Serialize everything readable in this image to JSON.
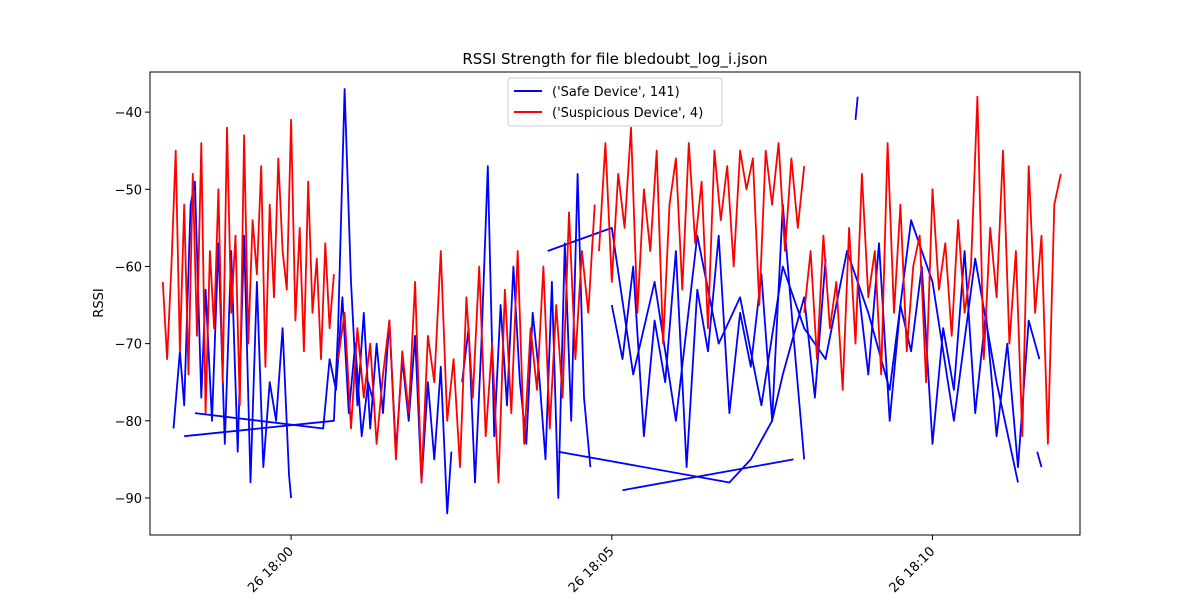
{
  "chart_data": {
    "type": "line",
    "title": "RSSI Strength for file bledoubt_log_i.json",
    "xlabel": "",
    "ylabel": "RSSI",
    "x_axis": "time",
    "xlim": [
      "18:57:48",
      "19:12:18"
    ],
    "ylim": [
      -94.8,
      -34.8
    ],
    "x_ticks": [
      {
        "value": "19:00:00",
        "label": "26 18:00"
      },
      {
        "value": "19:05:00",
        "label": "26 18:05"
      },
      {
        "value": "19:10:00",
        "label": "26 18:10"
      }
    ],
    "y_ticks": [
      -90,
      -80,
      -70,
      -60,
      -50,
      -40
    ],
    "grid": false,
    "legend_position": "top-center",
    "series": [
      {
        "name": "('Safe Device', 141)",
        "color": "#0000ff",
        "segments": [
          {
            "x": [
              "18:58:10",
              "18:58:16",
              "18:58:20",
              "18:58:26",
              "18:58:30",
              "18:58:36",
              "18:58:40",
              "18:58:46",
              "18:58:52",
              "18:58:58",
              "18:59:04",
              "18:59:10",
              "18:59:16",
              "18:59:22",
              "18:59:28",
              "18:59:34",
              "18:59:40",
              "18:59:46",
              "18:59:52",
              "18:59:58",
              "19:00:00"
            ],
            "y": [
              -81,
              -71,
              -78,
              -52,
              -49,
              -77,
              -63,
              -80,
              -57,
              -83,
              -58,
              -84,
              -56,
              -88,
              -62,
              -86,
              -75,
              -80,
              -68,
              -87,
              -90
            ]
          },
          {
            "x": [
              "18:58:20",
              "19:00:40",
              "19:00:44",
              "19:00:50",
              "19:00:56",
              "19:01:02",
              "19:01:08",
              "19:01:14",
              "19:01:20",
              "19:01:26",
              "19:01:32",
              "19:01:38",
              "19:01:44",
              "19:01:50",
              "19:01:56",
              "19:02:02",
              "19:02:08",
              "19:02:14",
              "19:02:20",
              "19:02:26",
              "19:02:30"
            ],
            "y": [
              -82,
              -80,
              -68,
              -37,
              -62,
              -78,
              -66,
              -81,
              -70,
              -79,
              -67,
              -84,
              -72,
              -80,
              -69,
              -88,
              -75,
              -85,
              -73,
              -92,
              -84
            ]
          },
          {
            "x": [
              "18:58:30",
              "19:00:30",
              "19:00:36",
              "19:00:42",
              "19:00:48",
              "19:00:54",
              "19:01:00",
              "19:01:06",
              "19:01:12",
              "19:01:18"
            ],
            "y": [
              -79,
              -81,
              -72,
              -76,
              -64,
              -79,
              -70,
              -82,
              -75,
              -78
            ]
          },
          {
            "x": [
              "19:02:40",
              "19:02:46",
              "19:02:52",
              "19:02:58",
              "19:03:04",
              "19:03:10",
              "19:03:16",
              "19:03:22",
              "19:03:28",
              "19:03:34",
              "19:03:40",
              "19:03:46",
              "19:03:52",
              "19:03:58",
              "19:04:04",
              "19:04:10",
              "19:04:16",
              "19:04:22",
              "19:04:28",
              "19:04:34",
              "19:04:40"
            ],
            "y": [
              -75,
              -68,
              -88,
              -70,
              -47,
              -82,
              -65,
              -78,
              -60,
              -75,
              -83,
              -66,
              -74,
              -85,
              -62,
              -90,
              -57,
              -80,
              -48,
              -77,
              -86
            ]
          },
          {
            "x": [
              "19:04:10",
              "19:06:50",
              "19:07:10",
              "19:07:30",
              "19:07:40",
              "19:07:50",
              "19:08:00"
            ],
            "y": [
              -84,
              -88,
              -85,
              -80,
              -74,
              -69,
              -85
            ]
          },
          {
            "x": [
              "19:04:00",
              "19:05:00",
              "19:05:20",
              "19:05:40",
              "19:06:00",
              "19:06:20",
              "19:06:40",
              "19:07:00",
              "19:07:20",
              "19:07:40",
              "19:08:00",
              "19:08:20",
              "19:08:40",
              "19:09:00",
              "19:09:20",
              "19:09:40",
              "19:10:00",
              "19:10:20",
              "19:10:40",
              "19:11:00",
              "19:11:20"
            ],
            "y": [
              -58,
              -55,
              -74,
              -62,
              -80,
              -56,
              -70,
              -64,
              -78,
              -60,
              -68,
              -72,
              -58,
              -66,
              -76,
              -54,
              -62,
              -80,
              -59,
              -75,
              -88
            ]
          },
          {
            "x": [
              "19:05:00",
              "19:05:10",
              "19:05:20",
              "19:05:30",
              "19:05:40",
              "19:05:50",
              "19:06:00",
              "19:06:10",
              "19:06:20",
              "19:06:30",
              "19:06:40",
              "19:06:50",
              "19:07:00",
              "19:07:10",
              "19:07:20",
              "19:07:30",
              "19:07:40",
              "19:07:50",
              "19:08:00",
              "19:08:10",
              "19:08:20"
            ],
            "y": [
              -65,
              -72,
              -60,
              -82,
              -67,
              -75,
              -58,
              -86,
              -63,
              -71,
              -56,
              -79,
              -66,
              -73,
              -61,
              -80,
              -52,
              -69,
              -64,
              -77,
              -59
            ]
          },
          {
            "x": [
              "19:05:10",
              "19:07:50"
            ],
            "y": [
              -89,
              -85
            ]
          },
          {
            "x": [
              "19:08:50",
              "19:09:00",
              "19:09:10",
              "19:09:20",
              "19:09:30",
              "19:09:40",
              "19:09:50",
              "19:10:00",
              "19:10:10",
              "19:10:20",
              "19:10:30",
              "19:10:40",
              "19:10:50",
              "19:11:00",
              "19:11:10",
              "19:11:20",
              "19:11:30",
              "19:11:40"
            ],
            "y": [
              -62,
              -74,
              -57,
              -80,
              -65,
              -71,
              -60,
              -83,
              -68,
              -76,
              -58,
              -79,
              -66,
              -82,
              -70,
              -86,
              -67,
              -72
            ]
          },
          {
            "x": [
              "19:08:48",
              "19:08:50"
            ],
            "y": [
              -41,
              -38
            ]
          },
          {
            "x": [
              "19:11:38",
              "19:11:42"
            ],
            "y": [
              -84,
              -86
            ]
          }
        ]
      },
      {
        "name": "('Suspicious Device', 4)",
        "color": "#ff0000",
        "segments": [
          {
            "x": [
              "18:58:00",
              "18:58:04",
              "18:58:08",
              "18:58:12",
              "18:58:16",
              "18:58:20",
              "18:58:24",
              "18:58:28",
              "18:58:32",
              "18:58:36",
              "18:58:40",
              "18:58:44",
              "18:58:48",
              "18:58:52",
              "18:58:56",
              "18:59:00",
              "18:59:04",
              "18:59:08",
              "18:59:12",
              "18:59:16",
              "18:59:20",
              "18:59:24",
              "18:59:28",
              "18:59:32",
              "18:59:36",
              "18:59:40",
              "18:59:44",
              "18:59:48",
              "18:59:52",
              "18:59:56",
              "19:00:00",
              "19:00:04",
              "19:00:08",
              "19:00:12",
              "19:00:16",
              "19:00:20",
              "19:00:24",
              "19:00:28",
              "19:00:32",
              "19:00:36",
              "19:00:40"
            ],
            "y": [
              -62,
              -72,
              -60,
              -45,
              -71,
              -52,
              -74,
              -48,
              -69,
              -44,
              -79,
              -58,
              -68,
              -50,
              -75,
              -42,
              -66,
              -56,
              -78,
              -43,
              -70,
              -54,
              -61,
              -47,
              -73,
              -52,
              -64,
              -46,
              -58,
              -63,
              -41,
              -67,
              -55,
              -71,
              -49,
              -66,
              -59,
              -72,
              -57,
              -68,
              -61
            ]
          },
          {
            "x": [
              "19:00:44",
              "19:00:50",
              "19:00:56",
              "19:01:02",
              "19:01:08",
              "19:01:14",
              "19:01:20",
              "19:01:26",
              "19:01:32",
              "19:01:38",
              "19:01:44",
              "19:01:50",
              "19:01:56",
              "19:02:02",
              "19:02:08",
              "19:02:14",
              "19:02:20",
              "19:02:26",
              "19:02:32",
              "19:02:38",
              "19:02:44",
              "19:02:50",
              "19:02:56",
              "19:03:02",
              "19:03:08",
              "19:03:14",
              "19:03:20",
              "19:03:26",
              "19:03:32",
              "19:03:38",
              "19:03:44",
              "19:03:50",
              "19:03:56",
              "19:04:02",
              "19:04:08",
              "19:04:14",
              "19:04:20",
              "19:04:26",
              "19:04:32",
              "19:04:38",
              "19:04:44"
            ],
            "y": [
              -72,
              -66,
              -81,
              -68,
              -77,
              -70,
              -83,
              -74,
              -67,
              -85,
              -71,
              -79,
              -62,
              -88,
              -69,
              -75,
              -58,
              -80,
              -72,
              -86,
              -64,
              -77,
              -60,
              -82,
              -70,
              -88,
              -63,
              -79,
              -58,
              -83,
              -68,
              -76,
              -60,
              -81,
              -65,
              -77,
              -53,
              -72,
              -58,
              -66,
              -52
            ]
          },
          {
            "x": [
              "19:04:48",
              "19:04:54",
              "19:05:00",
              "19:05:06",
              "19:05:12",
              "19:05:18",
              "19:05:24",
              "19:05:30",
              "19:05:36",
              "19:05:42",
              "19:05:48",
              "19:05:54",
              "19:06:00",
              "19:06:06",
              "19:06:12",
              "19:06:18",
              "19:06:24",
              "19:06:30",
              "19:06:36",
              "19:06:42",
              "19:06:48",
              "19:06:54",
              "19:07:00",
              "19:07:06",
              "19:07:12",
              "19:07:18",
              "19:07:24",
              "19:07:30",
              "19:07:36",
              "19:07:42",
              "19:07:48",
              "19:07:54",
              "19:08:00"
            ],
            "y": [
              -58,
              -44,
              -62,
              -48,
              -55,
              -42,
              -66,
              -50,
              -58,
              -45,
              -70,
              -52,
              -46,
              -63,
              -44,
              -57,
              -49,
              -68,
              -45,
              -54,
              -47,
              -60,
              -45,
              -50,
              -46,
              -65,
              -45,
              -52,
              -44,
              -58,
              -46,
              -55,
              -47
            ]
          },
          {
            "x": [
              "19:08:00",
              "19:08:06",
              "19:08:12",
              "19:08:18",
              "19:08:24",
              "19:08:30",
              "19:08:36",
              "19:08:42",
              "19:08:48",
              "19:08:54",
              "19:09:00",
              "19:09:06",
              "19:09:12",
              "19:09:18",
              "19:09:24",
              "19:09:30",
              "19:09:36",
              "19:09:42",
              "19:09:48",
              "19:09:54",
              "19:10:00",
              "19:10:06",
              "19:10:12",
              "19:10:18",
              "19:10:24",
              "19:10:30",
              "19:10:36",
              "19:10:42",
              "19:10:48",
              "19:10:54",
              "19:11:00",
              "19:11:06",
              "19:11:12",
              "19:11:18",
              "19:11:24",
              "19:11:30",
              "19:11:36",
              "19:11:42",
              "19:11:48",
              "19:11:54",
              "19:12:00"
            ],
            "y": [
              -66,
              -58,
              -72,
              -56,
              -68,
              -62,
              -76,
              -55,
              -70,
              -48,
              -64,
              -58,
              -74,
              -44,
              -66,
              -52,
              -71,
              -60,
              -56,
              -75,
              -50,
              -63,
              -57,
              -69,
              -54,
              -66,
              -60,
              -38,
              -72,
              -55,
              -64,
              -45,
              -70,
              -58,
              -82,
              -47,
              -66,
              -56,
              -83,
              -52,
              -48
            ]
          }
        ]
      }
    ]
  }
}
